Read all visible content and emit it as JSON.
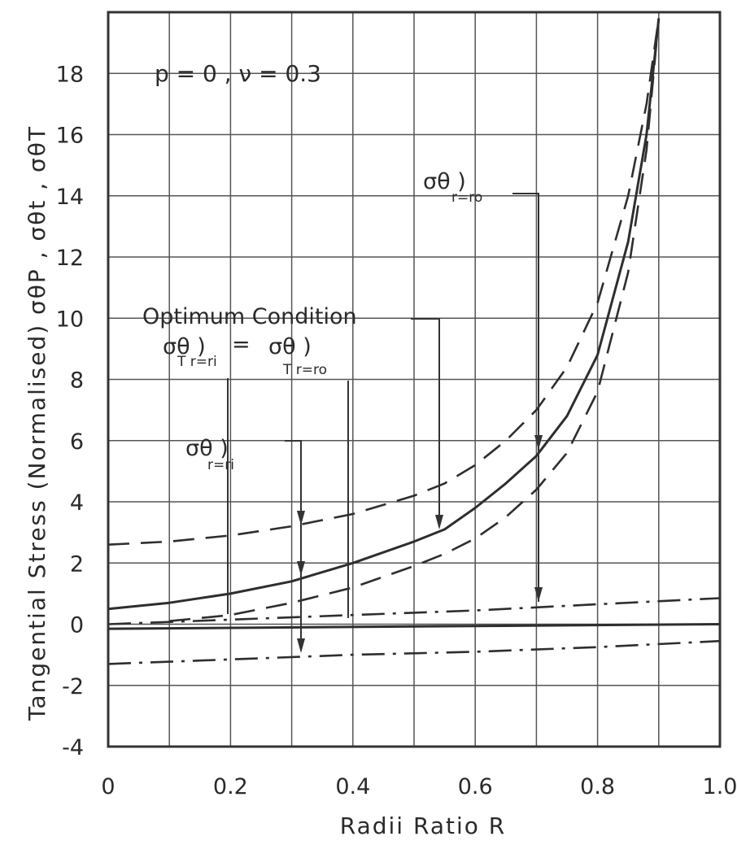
{
  "chart_data": {
    "type": "line",
    "annotation_params": "p = 0 , ν = 0.3",
    "xlabel": "Radii  Ratio  R",
    "ylabel": "Tangential Stress (Normalised) σθP , σθt , σθT",
    "xlim": [
      0,
      1.0
    ],
    "ylim": [
      -4,
      20
    ],
    "x_ticks": [
      "0",
      "0.2",
      "0.4",
      "0.6",
      "0.8",
      "1.0"
    ],
    "y_ticks": [
      "-4",
      "-2",
      "0",
      "2",
      "4",
      "6",
      "8",
      "10",
      "12",
      "14",
      "16",
      "18"
    ],
    "grid": true,
    "annotations": {
      "optimum": "Optimum Condition",
      "optimum_eq_left": "σθ )",
      "optimum_eq_left_sub": "T r=ri",
      "optimum_eq_mid": "=",
      "optimum_eq_right": "σθ )",
      "optimum_eq_right_sub": "T r=ro",
      "sigma_ri": "σθ )",
      "sigma_ri_sub": "r=ri",
      "sigma_ro": "σθ )",
      "sigma_ro_sub": "r=ro"
    },
    "series": [
      {
        "style": "solid",
        "x": [
          0,
          0.1,
          0.2,
          0.3,
          0.4,
          0.5,
          0.55,
          0.6,
          0.65,
          0.7,
          0.75,
          0.8,
          0.85,
          0.88,
          0.9
        ],
        "y": [
          0.5,
          0.7,
          1.0,
          1.4,
          2.0,
          2.7,
          3.1,
          3.8,
          4.6,
          5.5,
          6.8,
          8.8,
          12.5,
          16.0,
          19.8
        ]
      },
      {
        "style": "dashed",
        "x": [
          0,
          0.1,
          0.2,
          0.3,
          0.4,
          0.5,
          0.55,
          0.6,
          0.65,
          0.7,
          0.75,
          0.8,
          0.85,
          0.88,
          0.9
        ],
        "y": [
          2.6,
          2.7,
          2.9,
          3.2,
          3.6,
          4.2,
          4.6,
          5.2,
          6.0,
          7.0,
          8.4,
          10.5,
          14.0,
          17.0,
          19.8
        ]
      },
      {
        "style": "dashed",
        "x": [
          0.1,
          0.2,
          0.3,
          0.4,
          0.5,
          0.55,
          0.6,
          0.65,
          0.7,
          0.75,
          0.8,
          0.85,
          0.88,
          0.9
        ],
        "y": [
          0.1,
          0.3,
          0.7,
          1.2,
          1.9,
          2.3,
          2.8,
          3.5,
          4.4,
          5.6,
          7.6,
          11.5,
          15.5,
          19.8
        ]
      },
      {
        "style": "dashdot",
        "x": [
          0,
          0.2,
          0.4,
          0.6,
          0.8,
          1.0
        ],
        "y": [
          0.0,
          0.15,
          0.3,
          0.45,
          0.65,
          0.85
        ]
      },
      {
        "style": "solid",
        "x": [
          0,
          1.0
        ],
        "y": [
          -0.15,
          0.0
        ]
      },
      {
        "style": "dashdot",
        "x": [
          0,
          0.2,
          0.4,
          0.6,
          0.8,
          1.0
        ],
        "y": [
          -1.3,
          -1.15,
          -1.0,
          -0.9,
          -0.75,
          -0.55
        ]
      }
    ]
  }
}
